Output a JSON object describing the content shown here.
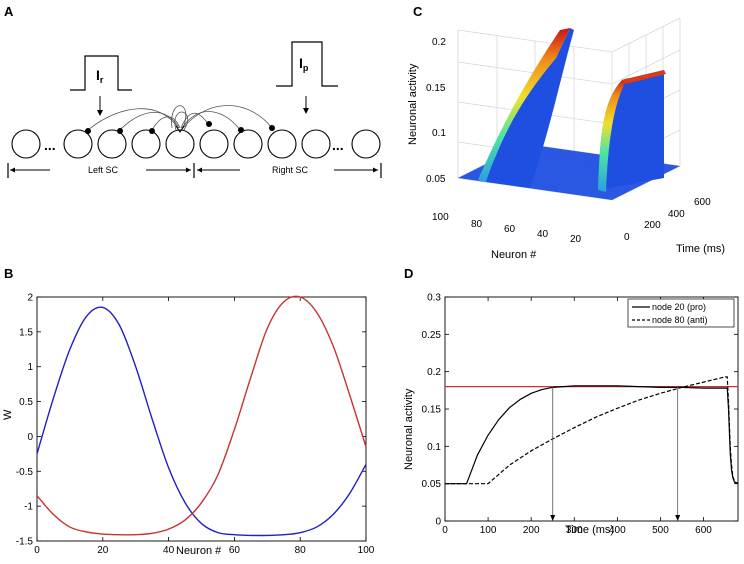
{
  "panels": {
    "a": {
      "letter": "A",
      "input_left": "I",
      "input_left_sub": "r",
      "input_right": "I",
      "input_right_sub": "p",
      "ellipsis": "...",
      "left_region": "Left SC",
      "right_region": "Right SC"
    },
    "b": {
      "letter": "B"
    },
    "c": {
      "letter": "C"
    },
    "d": {
      "letter": "D"
    }
  },
  "colors": {
    "blue": "#1f1fc8",
    "red": "#c83232",
    "surface_base": "#1f4fe0",
    "black": "#000000"
  },
  "chart_data": [
    {
      "id": "B",
      "type": "line",
      "title": "",
      "xlabel": "Neuron #",
      "ylabel": "W",
      "xlim": [
        0,
        100
      ],
      "ylim": [
        -1.5,
        2
      ],
      "xticks": [
        0,
        20,
        40,
        60,
        80,
        100
      ],
      "yticks": [
        -1.5,
        -1,
        -0.5,
        0,
        0.5,
        1,
        1.5,
        2
      ],
      "series": [
        {
          "name": "blue",
          "color": "#1f1fc8",
          "x": [
            0,
            5,
            10,
            15,
            20,
            25,
            30,
            35,
            40,
            45,
            50,
            55,
            60,
            65,
            70,
            75,
            80,
            85,
            90,
            95,
            100
          ],
          "y": [
            -0.25,
            0.55,
            1.25,
            1.72,
            1.85,
            1.6,
            1.0,
            0.25,
            -0.45,
            -0.95,
            -1.25,
            -1.38,
            -1.41,
            -1.42,
            -1.42,
            -1.41,
            -1.38,
            -1.3,
            -1.12,
            -0.82,
            -0.4
          ]
        },
        {
          "name": "red",
          "color": "#c83232",
          "x": [
            0,
            5,
            10,
            15,
            20,
            25,
            30,
            35,
            40,
            45,
            50,
            55,
            60,
            65,
            70,
            75,
            80,
            85,
            90,
            95,
            100
          ],
          "y": [
            -0.85,
            -1.12,
            -1.3,
            -1.37,
            -1.4,
            -1.41,
            -1.41,
            -1.39,
            -1.33,
            -1.2,
            -0.95,
            -0.55,
            0.1,
            0.85,
            1.55,
            1.93,
            2.0,
            1.78,
            1.3,
            0.6,
            -0.15
          ]
        }
      ]
    },
    {
      "id": "C",
      "type": "surface",
      "title": "",
      "xlabel": "Time (ms)",
      "ylabel": "Neuron #",
      "zlabel": "Neuronal activity",
      "zlim": [
        0.05,
        0.2
      ],
      "zticks": [
        0.05,
        0.1,
        0.15,
        0.2
      ],
      "neuron_ticks": [
        20,
        40,
        60,
        80,
        100
      ],
      "time_ticks": [
        0,
        200,
        400,
        600
      ],
      "peaks": [
        {
          "neuron": 80,
          "t_start": 100,
          "t_end": 660,
          "peak": 0.195
        },
        {
          "neuron": 20,
          "t_start": 50,
          "t_end": 660,
          "peak": 0.18
        }
      ]
    },
    {
      "id": "D",
      "type": "line",
      "title": "",
      "xlabel": "Time (ms)",
      "ylabel": "Neuronal activity",
      "xlim": [
        0,
        680
      ],
      "ylim": [
        0,
        0.3
      ],
      "xticks": [
        0,
        100,
        200,
        300,
        400,
        500,
        600
      ],
      "yticks": [
        0,
        0.05,
        0.1,
        0.15,
        0.2,
        0.25,
        0.3
      ],
      "threshold": {
        "value": 0.18,
        "color": "#c83232"
      },
      "arrows_at": [
        250,
        540
      ],
      "legend": {
        "position": "top-right",
        "entries": [
          {
            "label": "node 20 (pro)",
            "style": "solid"
          },
          {
            "label": "node 80 (anti)",
            "style": "dashed"
          }
        ]
      },
      "series": [
        {
          "name": "node 20 (pro)",
          "style": "solid",
          "x": [
            0,
            50,
            60,
            75,
            100,
            125,
            150,
            175,
            200,
            225,
            250,
            300,
            350,
            400,
            450,
            500,
            550,
            600,
            650,
            655,
            658,
            662,
            665,
            668,
            672,
            680
          ],
          "y": [
            0.05,
            0.05,
            0.065,
            0.088,
            0.115,
            0.136,
            0.152,
            0.163,
            0.171,
            0.176,
            0.179,
            0.181,
            0.181,
            0.181,
            0.18,
            0.179,
            0.179,
            0.178,
            0.178,
            0.178,
            0.15,
            0.09,
            0.068,
            0.058,
            0.052,
            0.05
          ]
        },
        {
          "name": "node 80 (anti)",
          "style": "dashed",
          "x": [
            0,
            100,
            150,
            200,
            250,
            300,
            350,
            400,
            450,
            500,
            550,
            600,
            650,
            655,
            658,
            662,
            665,
            668,
            672,
            680
          ],
          "y": [
            0.05,
            0.05,
            0.075,
            0.094,
            0.11,
            0.125,
            0.139,
            0.151,
            0.162,
            0.171,
            0.179,
            0.186,
            0.193,
            0.193,
            0.16,
            0.1,
            0.075,
            0.06,
            0.053,
            0.05
          ]
        }
      ]
    }
  ]
}
